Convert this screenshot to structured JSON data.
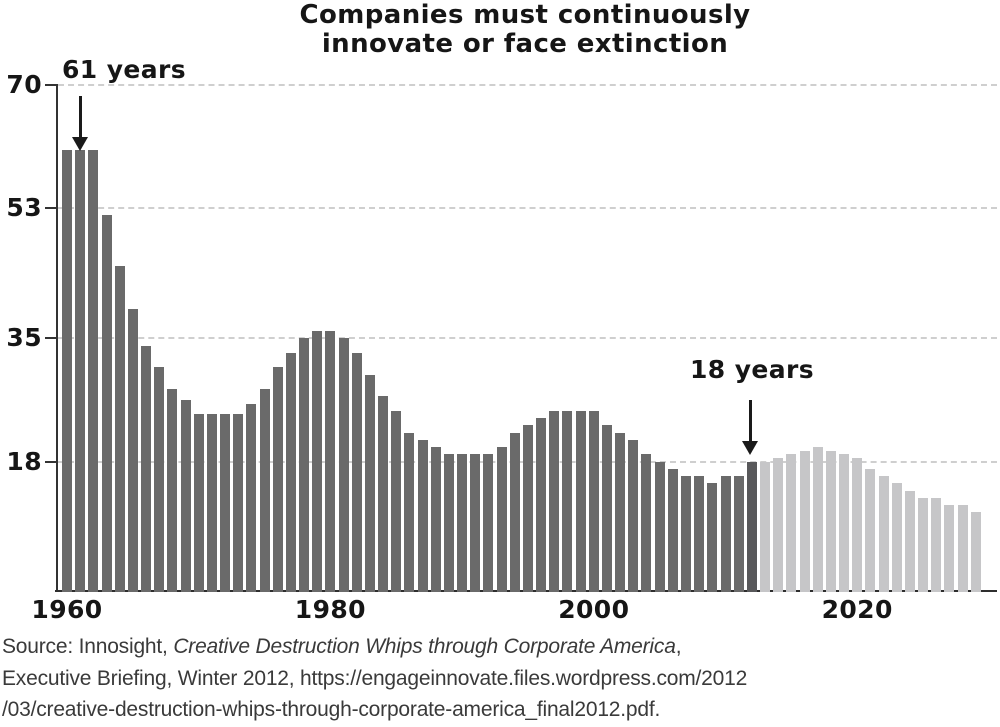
{
  "title": {
    "line1": "Companies must continuously",
    "line2": "innovate or face extinction"
  },
  "annotations": {
    "peak": {
      "label": "61 years",
      "points_to_year": 1961
    },
    "current": {
      "label": "18 years",
      "points_to_year": 2012
    }
  },
  "source": {
    "line1_prefix": "Source: Innosight, ",
    "line1_italic": "Creative Destruction Whips through Corporate America",
    "line1_suffix": ",",
    "line2": "Executive Briefing, Winter 2012, https://engageinnovate.files.wordpress.com/2012",
    "line3": "/03/creative-destruction-whips-through-corporate-america_final2012.pdf."
  },
  "colors": {
    "historical_bar": "#6a6a6a",
    "emphasis_bar": "#58585a",
    "projected_bar": "#c6c6c8",
    "gridline": "#cfcfcf",
    "axis": "#333333",
    "text": "#161616",
    "source_text": "#3a3a3a"
  },
  "chart_data": {
    "type": "bar",
    "title": "Companies must continuously innovate or face extinction",
    "xlabel": "",
    "ylabel": "",
    "ylim": [
      0,
      72
    ],
    "xlim": [
      1959,
      2030
    ],
    "grid": "horizontal-dashed",
    "legend_position": "none",
    "y_ticks": [
      70,
      53,
      35,
      18
    ],
    "x_ticks": [
      1960,
      1980,
      2000,
      2020
    ],
    "annotations": [
      {
        "text": "61 years",
        "year": 1961,
        "value": 61
      },
      {
        "text": "18 years",
        "year": 2012,
        "value": 18
      }
    ],
    "series": [
      {
        "name": "historical",
        "start_year": 1960,
        "color": "#6a6a6a",
        "values": [
          61,
          61,
          61,
          52,
          45,
          39,
          34,
          31,
          28,
          26.5,
          24.5,
          24.5,
          24.5,
          24.5,
          26,
          28,
          31,
          33,
          35,
          36,
          36,
          35,
          33,
          30,
          27,
          25,
          22,
          21,
          20,
          19,
          19,
          19,
          19,
          20,
          22,
          23,
          24,
          25,
          25,
          25,
          25,
          23,
          22,
          21,
          19,
          18,
          17,
          16,
          16,
          15,
          16,
          16,
          18
        ]
      },
      {
        "name": "projected",
        "start_year": 2013,
        "color": "#c6c6c8",
        "values": [
          18,
          18.5,
          19,
          19.5,
          20,
          19.5,
          19,
          18.5,
          17,
          16,
          15,
          14,
          13,
          13,
          12,
          12,
          11
        ]
      }
    ],
    "emphasis": {
      "year": 2012,
      "color": "#58585a"
    }
  }
}
